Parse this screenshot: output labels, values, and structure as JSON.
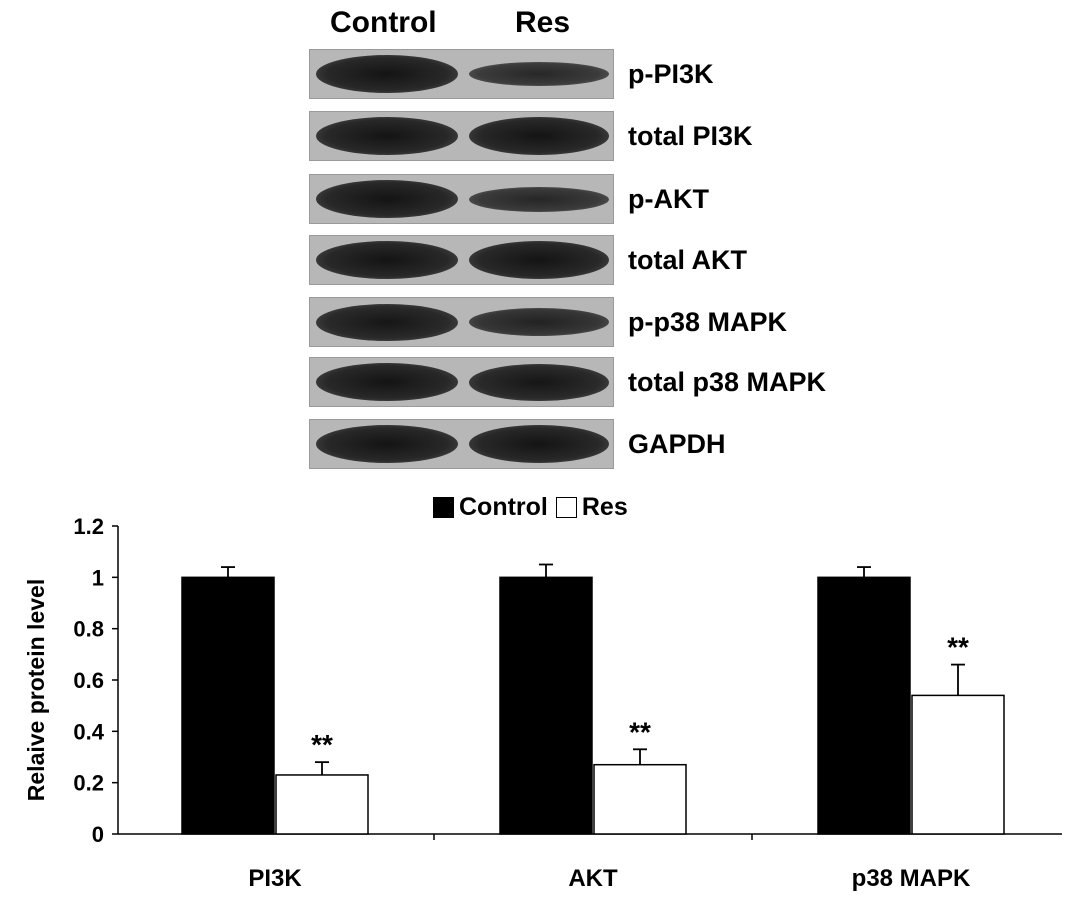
{
  "blot": {
    "lanes": [
      "Control",
      "Res"
    ],
    "rows": [
      {
        "label": "p-PI3K",
        "control_intensity": 1.0,
        "res_intensity": 0.45
      },
      {
        "label": "total PI3K",
        "control_intensity": 1.0,
        "res_intensity": 1.0
      },
      {
        "label": "p-AKT",
        "control_intensity": 1.0,
        "res_intensity": 0.5
      },
      {
        "label": "total AKT",
        "control_intensity": 1.0,
        "res_intensity": 1.0
      },
      {
        "label": "p-p38 MAPK",
        "control_intensity": 0.95,
        "res_intensity": 0.6
      },
      {
        "label": "total p38 MAPK",
        "control_intensity": 1.0,
        "res_intensity": 0.95
      },
      {
        "label": "GAPDH",
        "control_intensity": 1.0,
        "res_intensity": 1.0
      }
    ]
  },
  "chart_data": {
    "type": "bar",
    "categories": [
      "PI3K",
      "AKT",
      "p38 MAPK"
    ],
    "series": [
      {
        "name": "Control",
        "values": [
          1.0,
          1.0,
          1.0
        ],
        "errors": [
          0.04,
          0.05,
          0.04
        ],
        "color": "#000000"
      },
      {
        "name": "Res",
        "values": [
          0.23,
          0.27,
          0.54
        ],
        "errors": [
          0.05,
          0.06,
          0.12
        ],
        "color": "#ffffff"
      }
    ],
    "significance": [
      "**",
      "**",
      "**"
    ],
    "xlabel": "",
    "ylabel": "Relaive protein level",
    "ylim": [
      0,
      1.2
    ],
    "yticks": [
      "0",
      "0.2",
      "0.4",
      "0.6",
      "0.8",
      "1",
      "1.2"
    ],
    "legend_position": "top-center",
    "grid": false
  }
}
